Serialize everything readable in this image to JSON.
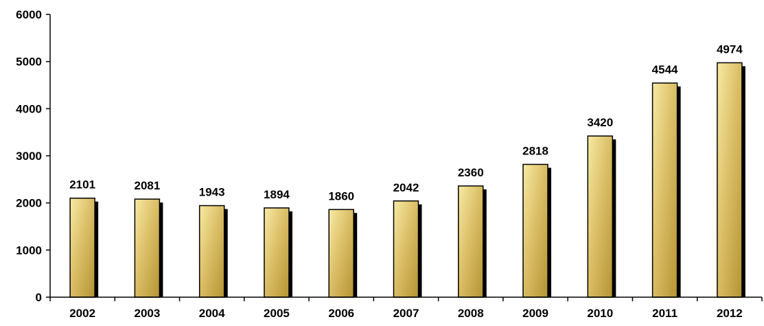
{
  "chart_data": {
    "type": "bar",
    "title": "",
    "xlabel": "",
    "ylabel": "",
    "categories": [
      "2002",
      "2003",
      "2004",
      "2005",
      "2006",
      "2007",
      "2008",
      "2009",
      "2010",
      "2011",
      "2012"
    ],
    "values": [
      2101,
      2081,
      1943,
      1894,
      1860,
      2042,
      2360,
      2818,
      3420,
      4544,
      4974
    ],
    "data_labels": [
      "2101",
      "2081",
      "1943",
      "1894",
      "1860",
      "2042",
      "2360",
      "2818",
      "3420",
      "4544",
      "4974"
    ],
    "ylim": [
      0,
      6000
    ],
    "yticks": [
      0,
      1000,
      2000,
      3000,
      4000,
      5000,
      6000
    ],
    "ytick_labels": [
      "0",
      "1000",
      "2000",
      "3000",
      "4000",
      "5000",
      "6000"
    ],
    "grid": false,
    "legend": "none",
    "colors": {
      "bar_light": "#f7eaa4",
      "bar_mid": "#dcc069",
      "bar_dark": "#b49433",
      "bar_outline": "#000000",
      "bar_shadow": "#000000",
      "axis": "#000000",
      "text": "#000000"
    }
  }
}
